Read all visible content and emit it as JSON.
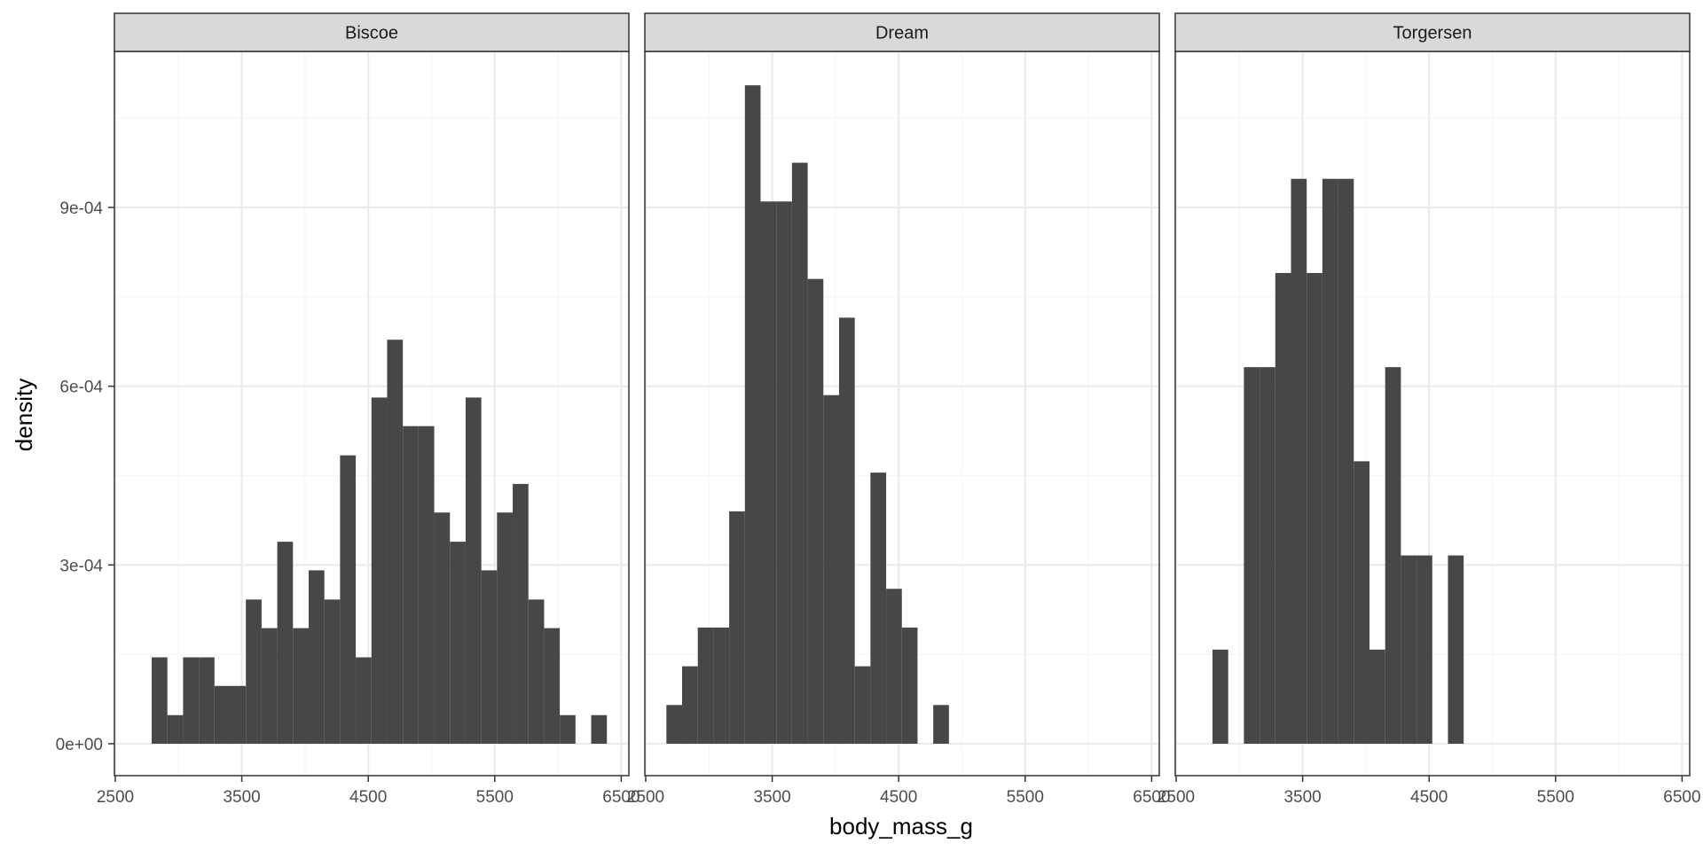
{
  "chart_data": {
    "type": "bar",
    "subtype": "histogram-facet",
    "title": "",
    "xlabel": "body_mass_g",
    "ylabel": "density",
    "xlim": [
      2500,
      6500
    ],
    "ylim": [
      0,
      0.0011
    ],
    "x_ticks": [
      2500,
      3500,
      4500,
      5500,
      6500
    ],
    "x_tick_labels": [
      "2500",
      "3500",
      "4500",
      "5500",
      "6500"
    ],
    "y_ticks": [
      0,
      0.0003,
      0.0006,
      0.0009
    ],
    "y_tick_labels": [
      "0e+00",
      "3e-04",
      "6e-04",
      "9e-04"
    ],
    "bin_width": 124.1,
    "grid": true,
    "colors": {
      "bar": "#474747",
      "strip_bg": "#d9d9d9",
      "strip_border": "#333333",
      "panel_border": "#333333",
      "grid_major": "#ebebeb",
      "grid_minor": "#f5f5f5"
    },
    "facets": [
      {
        "name": "Biscoe",
        "bins": [
          {
            "x0": 2787.6,
            "x1": 2911.7,
            "y": 0.000145
          },
          {
            "x0": 2911.7,
            "x1": 3035.8,
            "y": 4.8e-05
          },
          {
            "x0": 3035.8,
            "x1": 3159.9,
            "y": 0.000145
          },
          {
            "x0": 3159.9,
            "x1": 3284.0,
            "y": 0.000145
          },
          {
            "x0": 3284.0,
            "x1": 3408.1,
            "y": 9.7e-05
          },
          {
            "x0": 3408.1,
            "x1": 3532.2,
            "y": 9.7e-05
          },
          {
            "x0": 3532.2,
            "x1": 3656.3,
            "y": 0.000242
          },
          {
            "x0": 3656.3,
            "x1": 3780.4,
            "y": 0.000194
          },
          {
            "x0": 3780.4,
            "x1": 3904.5,
            "y": 0.000339
          },
          {
            "x0": 3904.5,
            "x1": 4028.6,
            "y": 0.000194
          },
          {
            "x0": 4028.6,
            "x1": 4152.7,
            "y": 0.000291
          },
          {
            "x0": 4152.7,
            "x1": 4276.8,
            "y": 0.000242
          },
          {
            "x0": 4276.8,
            "x1": 4400.9,
            "y": 0.000484
          },
          {
            "x0": 4400.9,
            "x1": 4525.0,
            "y": 0.000145
          },
          {
            "x0": 4525.0,
            "x1": 4649.1,
            "y": 0.000581
          },
          {
            "x0": 4649.1,
            "x1": 4773.2,
            "y": 0.000678
          },
          {
            "x0": 4773.2,
            "x1": 4897.3,
            "y": 0.000533
          },
          {
            "x0": 4897.3,
            "x1": 5021.4,
            "y": 0.000533
          },
          {
            "x0": 5021.4,
            "x1": 5145.5,
            "y": 0.000388
          },
          {
            "x0": 5145.5,
            "x1": 5269.6,
            "y": 0.000339
          },
          {
            "x0": 5269.6,
            "x1": 5393.7,
            "y": 0.000581
          },
          {
            "x0": 5393.7,
            "x1": 5517.8,
            "y": 0.000291
          },
          {
            "x0": 5517.8,
            "x1": 5641.9,
            "y": 0.000388
          },
          {
            "x0": 5641.9,
            "x1": 5766.0,
            "y": 0.000436
          },
          {
            "x0": 5766.0,
            "x1": 5890.1,
            "y": 0.000242
          },
          {
            "x0": 5890.1,
            "x1": 6014.2,
            "y": 0.000194
          },
          {
            "x0": 6014.2,
            "x1": 6138.3,
            "y": 4.8e-05
          },
          {
            "x0": 6262.4,
            "x1": 6386.5,
            "y": 4.8e-05
          }
        ]
      },
      {
        "name": "Dream",
        "bins": [
          {
            "x0": 2663.5,
            "x1": 2787.6,
            "y": 6.5e-05
          },
          {
            "x0": 2787.6,
            "x1": 2911.7,
            "y": 0.00013
          },
          {
            "x0": 2911.7,
            "x1": 3035.8,
            "y": 0.000195
          },
          {
            "x0": 3035.8,
            "x1": 3159.9,
            "y": 0.000195
          },
          {
            "x0": 3159.9,
            "x1": 3284.0,
            "y": 0.00039
          },
          {
            "x0": 3284.0,
            "x1": 3408.1,
            "y": 0.001105
          },
          {
            "x0": 3408.1,
            "x1": 3532.2,
            "y": 0.00091
          },
          {
            "x0": 3532.2,
            "x1": 3656.3,
            "y": 0.00091
          },
          {
            "x0": 3656.3,
            "x1": 3780.4,
            "y": 0.000975
          },
          {
            "x0": 3780.4,
            "x1": 3904.5,
            "y": 0.00078
          },
          {
            "x0": 3904.5,
            "x1": 4028.6,
            "y": 0.000585
          },
          {
            "x0": 4028.6,
            "x1": 4152.7,
            "y": 0.000715
          },
          {
            "x0": 4152.7,
            "x1": 4276.8,
            "y": 0.00013
          },
          {
            "x0": 4276.8,
            "x1": 4400.9,
            "y": 0.000455
          },
          {
            "x0": 4400.9,
            "x1": 4525.0,
            "y": 0.00026
          },
          {
            "x0": 4525.0,
            "x1": 4649.1,
            "y": 0.000195
          },
          {
            "x0": 4773.2,
            "x1": 4897.3,
            "y": 6.5e-05
          }
        ]
      },
      {
        "name": "Torgersen",
        "bins": [
          {
            "x0": 2787.6,
            "x1": 2911.7,
            "y": 0.000158
          },
          {
            "x0": 3035.8,
            "x1": 3159.9,
            "y": 0.000632
          },
          {
            "x0": 3159.9,
            "x1": 3284.0,
            "y": 0.000632
          },
          {
            "x0": 3284.0,
            "x1": 3408.1,
            "y": 0.00079
          },
          {
            "x0": 3408.1,
            "x1": 3532.2,
            "y": 0.000948
          },
          {
            "x0": 3532.2,
            "x1": 3656.3,
            "y": 0.00079
          },
          {
            "x0": 3656.3,
            "x1": 3780.4,
            "y": 0.000948
          },
          {
            "x0": 3780.4,
            "x1": 3904.5,
            "y": 0.000948
          },
          {
            "x0": 3904.5,
            "x1": 4028.6,
            "y": 0.000474
          },
          {
            "x0": 4028.6,
            "x1": 4152.7,
            "y": 0.000158
          },
          {
            "x0": 4152.7,
            "x1": 4276.8,
            "y": 0.000632
          },
          {
            "x0": 4276.8,
            "x1": 4400.9,
            "y": 0.000316
          },
          {
            "x0": 4400.9,
            "x1": 4525.0,
            "y": 0.000316
          },
          {
            "x0": 4649.1,
            "x1": 4773.2,
            "y": 0.000316
          }
        ]
      }
    ]
  }
}
